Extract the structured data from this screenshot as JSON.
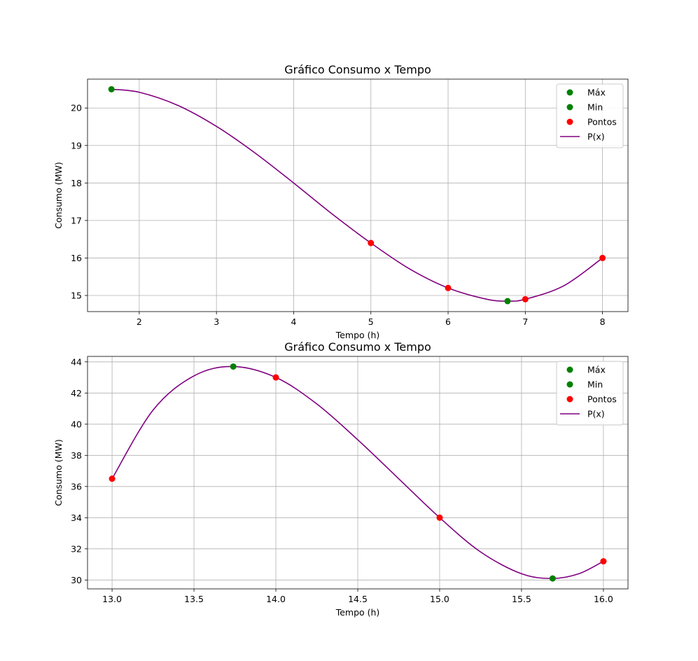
{
  "chart_data": [
    {
      "type": "line",
      "title": "Gráfico Consumo x Tempo",
      "xlabel": "Tempo (h)",
      "ylabel": "Consumo (MW)",
      "xlim": [
        1.33,
        8.33
      ],
      "ylim": [
        14.57,
        20.77
      ],
      "xticks": [
        2,
        3,
        4,
        5,
        6,
        7,
        8
      ],
      "xtick_labels": [
        "2",
        "3",
        "4",
        "5",
        "6",
        "7",
        "8"
      ],
      "yticks": [
        15,
        16,
        17,
        18,
        19,
        20
      ],
      "ytick_labels": [
        "15",
        "16",
        "17",
        "18",
        "19",
        "20"
      ],
      "grid": true,
      "legend_position": "top-right",
      "legend": [
        "Máx",
        "Min",
        "Pontos",
        "P(x)"
      ],
      "series": [
        {
          "name": "Máx",
          "kind": "scatter",
          "color": "#008000",
          "x": [
            1.64
          ],
          "y": [
            20.5
          ]
        },
        {
          "name": "Min",
          "kind": "scatter",
          "color": "#008000",
          "x": [
            6.77
          ],
          "y": [
            14.85
          ]
        },
        {
          "name": "Pontos",
          "kind": "scatter",
          "color": "#ff0000",
          "x": [
            5,
            6,
            7,
            8
          ],
          "y": [
            16.4,
            15.2,
            14.9,
            16.0
          ]
        },
        {
          "name": "P(x)",
          "kind": "line",
          "color": "#800080",
          "x": [
            1.64,
            2.0,
            2.5,
            3.0,
            3.5,
            4.0,
            4.5,
            5.0,
            5.5,
            6.0,
            6.5,
            6.77,
            7.0,
            7.5,
            8.0
          ],
          "y": [
            20.5,
            20.42,
            20.07,
            19.51,
            18.8,
            18.0,
            17.17,
            16.4,
            15.71,
            15.2,
            14.9,
            14.85,
            14.9,
            15.26,
            16.0
          ]
        }
      ]
    },
    {
      "type": "line",
      "title": "Gráfico Consumo x Tempo",
      "xlabel": "Tempo (h)",
      "ylabel": "Consumo (MW)",
      "xlim": [
        12.85,
        16.15
      ],
      "ylim": [
        29.43,
        44.35
      ],
      "xticks": [
        13.0,
        13.5,
        14.0,
        14.5,
        15.0,
        15.5,
        16.0
      ],
      "xtick_labels": [
        "13.0",
        "13.5",
        "14.0",
        "14.5",
        "15.0",
        "15.5",
        "16.0"
      ],
      "yticks": [
        30,
        32,
        34,
        36,
        38,
        40,
        42,
        44
      ],
      "ytick_labels": [
        "30",
        "32",
        "34",
        "36",
        "38",
        "40",
        "42",
        "44"
      ],
      "grid": true,
      "legend_position": "top-right",
      "legend": [
        "Máx",
        "Min",
        "Pontos",
        "P(x)"
      ],
      "series": [
        {
          "name": "Máx",
          "kind": "scatter",
          "color": "#008000",
          "x": [
            13.74
          ],
          "y": [
            43.7
          ]
        },
        {
          "name": "Min",
          "kind": "scatter",
          "color": "#008000",
          "x": [
            15.69
          ],
          "y": [
            30.1
          ]
        },
        {
          "name": "Pontos",
          "kind": "scatter",
          "color": "#ff0000",
          "x": [
            13.0,
            14.0,
            15.0,
            16.0
          ],
          "y": [
            36.5,
            43.0,
            34.0,
            31.2
          ]
        },
        {
          "name": "P(x)",
          "kind": "line",
          "color": "#800080",
          "x": [
            13.0,
            13.25,
            13.5,
            13.74,
            14.0,
            14.25,
            14.5,
            14.75,
            15.0,
            15.25,
            15.5,
            15.69,
            15.85,
            16.0
          ],
          "y": [
            36.5,
            40.9,
            43.1,
            43.7,
            43.0,
            41.3,
            39.0,
            36.5,
            34.0,
            31.8,
            30.4,
            30.1,
            30.4,
            31.2
          ]
        }
      ]
    }
  ]
}
